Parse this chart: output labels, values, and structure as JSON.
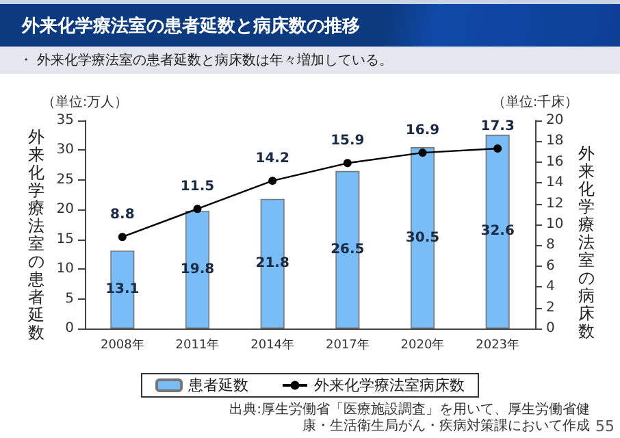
{
  "chart_data": {
    "type": "bar",
    "title": "外来化学療法室の患者延数と病床数の推移",
    "subtitle": "・ 外来化学療法室の患者延数と病床数は年々増加している。",
    "ylabel": "外来化学療法室の患者延数",
    "y2label": "外来化学療法室の病床数",
    "annotations": [
      "（単位:万人）",
      "（単位:千床）",
      "出典:厚生労働省「医療施設調査」を用いて、厚生労働省健康・生活衛生局がん・疾病対策課において作成",
      "55"
    ],
    "categories": [
      "2008年",
      "2011年",
      "2014年",
      "2017年",
      "2020年",
      "2023年"
    ],
    "series": [
      {
        "name": "患者延数",
        "type": "bar",
        "color": "#78bdf8",
        "values": [
          13.1,
          19.8,
          21.8,
          26.5,
          30.5,
          32.6
        ]
      },
      {
        "name": "外来化学療法室病床数",
        "type": "line",
        "axis": "y2",
        "color": "#000000",
        "values": [
          8.8,
          11.5,
          14.2,
          15.9,
          16.9,
          17.3
        ]
      }
    ],
    "ylim": [
      0,
      35
    ],
    "yticks": [
      0,
      5,
      10,
      15,
      20,
      25,
      30,
      35
    ],
    "y2lim": [
      0,
      20
    ],
    "y2ticks": [
      0,
      2,
      4,
      6,
      8,
      10,
      12,
      14,
      16,
      18,
      20
    ],
    "data_labels": true,
    "legend": "bottom",
    "marker": "circle",
    "grid": false
  }
}
